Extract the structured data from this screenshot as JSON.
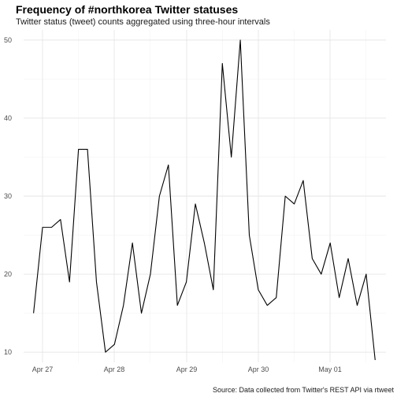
{
  "chart_data": {
    "type": "line",
    "title": "Frequency of #northkorea Twitter statuses",
    "subtitle": "Twitter status (tweet) counts aggregated using three-hour intervals",
    "caption": "Source: Data collected from Twitter's REST API via rtweet",
    "xlabel": "",
    "ylabel": "",
    "x_unit": "datetime (3-hour bins)",
    "x_tick_labels": [
      "Apr 27",
      "Apr 28",
      "Apr 29",
      "Apr 30",
      "May 01"
    ],
    "y_ticks": [
      10,
      20,
      30,
      40,
      50
    ],
    "ylim": [
      8.7,
      51.3
    ],
    "grid": true,
    "line_color": "#000000",
    "series": [
      {
        "x": [
          "Apr 26 21:00",
          "Apr 27 00:00",
          "Apr 27 03:00",
          "Apr 27 06:00",
          "Apr 27 09:00",
          "Apr 27 12:00",
          "Apr 27 15:00",
          "Apr 27 18:00",
          "Apr 27 21:00",
          "Apr 28 00:00",
          "Apr 28 03:00",
          "Apr 28 06:00",
          "Apr 28 09:00",
          "Apr 28 12:00",
          "Apr 28 15:00",
          "Apr 28 18:00",
          "Apr 28 21:00",
          "Apr 29 00:00",
          "Apr 29 03:00",
          "Apr 29 06:00",
          "Apr 29 09:00",
          "Apr 29 12:00",
          "Apr 29 15:00",
          "Apr 29 18:00",
          "Apr 29 21:00",
          "Apr 30 00:00",
          "Apr 30 03:00",
          "Apr 30 06:00",
          "Apr 30 09:00",
          "Apr 30 12:00",
          "Apr 30 15:00",
          "Apr 30 18:00",
          "Apr 30 21:00",
          "May 01 00:00",
          "May 01 03:00",
          "May 01 06:00",
          "May 01 09:00",
          "May 01 12:00",
          "May 01 15:00"
        ],
        "values": [
          15,
          26,
          26,
          27,
          19,
          36,
          36,
          19,
          10,
          11,
          16,
          24,
          15,
          20,
          30,
          34,
          16,
          19,
          29,
          24,
          18,
          47,
          35,
          50,
          25,
          18,
          16,
          17,
          30,
          29,
          32,
          22,
          20,
          24,
          17,
          22,
          16,
          20,
          9
        ]
      }
    ]
  }
}
